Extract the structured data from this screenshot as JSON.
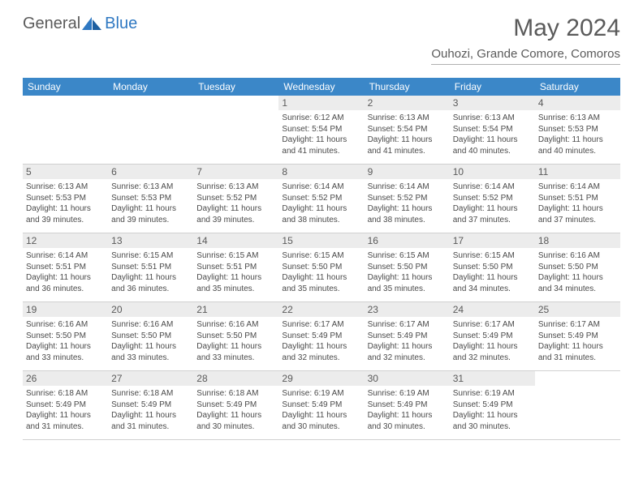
{
  "brand": {
    "part1": "General",
    "part2": "Blue"
  },
  "title": "May 2024",
  "location": "Ouhozi, Grande Comore, Comoros",
  "colors": {
    "header_bg": "#3b87c8",
    "header_text": "#ffffff",
    "daynum_bg": "#ececec",
    "text_muted": "#5a5a5a",
    "text_body": "#4a4a4a",
    "brand_blue": "#2f78c2",
    "border": "#d0d0d0"
  },
  "weekdays": [
    "Sunday",
    "Monday",
    "Tuesday",
    "Wednesday",
    "Thursday",
    "Friday",
    "Saturday"
  ],
  "weeks": [
    [
      {
        "n": "",
        "sr": "",
        "ss": "",
        "d1": "",
        "d2": ""
      },
      {
        "n": "",
        "sr": "",
        "ss": "",
        "d1": "",
        "d2": ""
      },
      {
        "n": "",
        "sr": "",
        "ss": "",
        "d1": "",
        "d2": ""
      },
      {
        "n": "1",
        "sr": "Sunrise: 6:12 AM",
        "ss": "Sunset: 5:54 PM",
        "d1": "Daylight: 11 hours",
        "d2": "and 41 minutes."
      },
      {
        "n": "2",
        "sr": "Sunrise: 6:13 AM",
        "ss": "Sunset: 5:54 PM",
        "d1": "Daylight: 11 hours",
        "d2": "and 41 minutes."
      },
      {
        "n": "3",
        "sr": "Sunrise: 6:13 AM",
        "ss": "Sunset: 5:54 PM",
        "d1": "Daylight: 11 hours",
        "d2": "and 40 minutes."
      },
      {
        "n": "4",
        "sr": "Sunrise: 6:13 AM",
        "ss": "Sunset: 5:53 PM",
        "d1": "Daylight: 11 hours",
        "d2": "and 40 minutes."
      }
    ],
    [
      {
        "n": "5",
        "sr": "Sunrise: 6:13 AM",
        "ss": "Sunset: 5:53 PM",
        "d1": "Daylight: 11 hours",
        "d2": "and 39 minutes."
      },
      {
        "n": "6",
        "sr": "Sunrise: 6:13 AM",
        "ss": "Sunset: 5:53 PM",
        "d1": "Daylight: 11 hours",
        "d2": "and 39 minutes."
      },
      {
        "n": "7",
        "sr": "Sunrise: 6:13 AM",
        "ss": "Sunset: 5:52 PM",
        "d1": "Daylight: 11 hours",
        "d2": "and 39 minutes."
      },
      {
        "n": "8",
        "sr": "Sunrise: 6:14 AM",
        "ss": "Sunset: 5:52 PM",
        "d1": "Daylight: 11 hours",
        "d2": "and 38 minutes."
      },
      {
        "n": "9",
        "sr": "Sunrise: 6:14 AM",
        "ss": "Sunset: 5:52 PM",
        "d1": "Daylight: 11 hours",
        "d2": "and 38 minutes."
      },
      {
        "n": "10",
        "sr": "Sunrise: 6:14 AM",
        "ss": "Sunset: 5:52 PM",
        "d1": "Daylight: 11 hours",
        "d2": "and 37 minutes."
      },
      {
        "n": "11",
        "sr": "Sunrise: 6:14 AM",
        "ss": "Sunset: 5:51 PM",
        "d1": "Daylight: 11 hours",
        "d2": "and 37 minutes."
      }
    ],
    [
      {
        "n": "12",
        "sr": "Sunrise: 6:14 AM",
        "ss": "Sunset: 5:51 PM",
        "d1": "Daylight: 11 hours",
        "d2": "and 36 minutes."
      },
      {
        "n": "13",
        "sr": "Sunrise: 6:15 AM",
        "ss": "Sunset: 5:51 PM",
        "d1": "Daylight: 11 hours",
        "d2": "and 36 minutes."
      },
      {
        "n": "14",
        "sr": "Sunrise: 6:15 AM",
        "ss": "Sunset: 5:51 PM",
        "d1": "Daylight: 11 hours",
        "d2": "and 35 minutes."
      },
      {
        "n": "15",
        "sr": "Sunrise: 6:15 AM",
        "ss": "Sunset: 5:50 PM",
        "d1": "Daylight: 11 hours",
        "d2": "and 35 minutes."
      },
      {
        "n": "16",
        "sr": "Sunrise: 6:15 AM",
        "ss": "Sunset: 5:50 PM",
        "d1": "Daylight: 11 hours",
        "d2": "and 35 minutes."
      },
      {
        "n": "17",
        "sr": "Sunrise: 6:15 AM",
        "ss": "Sunset: 5:50 PM",
        "d1": "Daylight: 11 hours",
        "d2": "and 34 minutes."
      },
      {
        "n": "18",
        "sr": "Sunrise: 6:16 AM",
        "ss": "Sunset: 5:50 PM",
        "d1": "Daylight: 11 hours",
        "d2": "and 34 minutes."
      }
    ],
    [
      {
        "n": "19",
        "sr": "Sunrise: 6:16 AM",
        "ss": "Sunset: 5:50 PM",
        "d1": "Daylight: 11 hours",
        "d2": "and 33 minutes."
      },
      {
        "n": "20",
        "sr": "Sunrise: 6:16 AM",
        "ss": "Sunset: 5:50 PM",
        "d1": "Daylight: 11 hours",
        "d2": "and 33 minutes."
      },
      {
        "n": "21",
        "sr": "Sunrise: 6:16 AM",
        "ss": "Sunset: 5:50 PM",
        "d1": "Daylight: 11 hours",
        "d2": "and 33 minutes."
      },
      {
        "n": "22",
        "sr": "Sunrise: 6:17 AM",
        "ss": "Sunset: 5:49 PM",
        "d1": "Daylight: 11 hours",
        "d2": "and 32 minutes."
      },
      {
        "n": "23",
        "sr": "Sunrise: 6:17 AM",
        "ss": "Sunset: 5:49 PM",
        "d1": "Daylight: 11 hours",
        "d2": "and 32 minutes."
      },
      {
        "n": "24",
        "sr": "Sunrise: 6:17 AM",
        "ss": "Sunset: 5:49 PM",
        "d1": "Daylight: 11 hours",
        "d2": "and 32 minutes."
      },
      {
        "n": "25",
        "sr": "Sunrise: 6:17 AM",
        "ss": "Sunset: 5:49 PM",
        "d1": "Daylight: 11 hours",
        "d2": "and 31 minutes."
      }
    ],
    [
      {
        "n": "26",
        "sr": "Sunrise: 6:18 AM",
        "ss": "Sunset: 5:49 PM",
        "d1": "Daylight: 11 hours",
        "d2": "and 31 minutes."
      },
      {
        "n": "27",
        "sr": "Sunrise: 6:18 AM",
        "ss": "Sunset: 5:49 PM",
        "d1": "Daylight: 11 hours",
        "d2": "and 31 minutes."
      },
      {
        "n": "28",
        "sr": "Sunrise: 6:18 AM",
        "ss": "Sunset: 5:49 PM",
        "d1": "Daylight: 11 hours",
        "d2": "and 30 minutes."
      },
      {
        "n": "29",
        "sr": "Sunrise: 6:19 AM",
        "ss": "Sunset: 5:49 PM",
        "d1": "Daylight: 11 hours",
        "d2": "and 30 minutes."
      },
      {
        "n": "30",
        "sr": "Sunrise: 6:19 AM",
        "ss": "Sunset: 5:49 PM",
        "d1": "Daylight: 11 hours",
        "d2": "and 30 minutes."
      },
      {
        "n": "31",
        "sr": "Sunrise: 6:19 AM",
        "ss": "Sunset: 5:49 PM",
        "d1": "Daylight: 11 hours",
        "d2": "and 30 minutes."
      },
      {
        "n": "",
        "sr": "",
        "ss": "",
        "d1": "",
        "d2": ""
      }
    ]
  ]
}
